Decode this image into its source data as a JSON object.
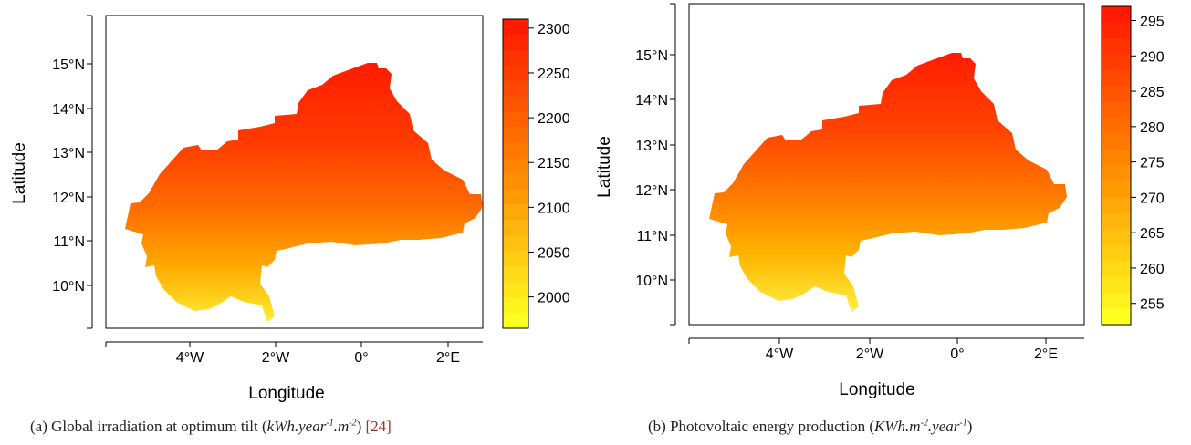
{
  "panels": [
    {
      "id": "a",
      "caption": {
        "prefix": "(a) Global irradiation at optimum tilt (",
        "unit_a": "kWh.year",
        "exp_a": "-1",
        "unit_b": ".m",
        "exp_b": "-2",
        "suffix": ")",
        "citation": "[24]"
      },
      "xlabel": "Longitude",
      "ylabel": "Latitude",
      "x_ticks": [
        "4°W",
        "2°W",
        "0°",
        "2°E"
      ],
      "y_ticks": [
        "15°N",
        "14°N",
        "13°N",
        "12°N",
        "11°N",
        "10°N"
      ],
      "colorbar": {
        "ticks": [
          "2300",
          "2250",
          "2200",
          "2150",
          "2100",
          "2050",
          "2000"
        ],
        "min": 1965,
        "max": 2310
      }
    },
    {
      "id": "b",
      "caption": {
        "prefix": "(b) Photovoltaic energy production (",
        "unit_a": "KWh.m",
        "exp_a": "-2",
        "unit_b": ".year",
        "exp_b": "-1",
        "suffix": ")",
        "citation": ""
      },
      "xlabel": "Longitude",
      "ylabel": "Latitude",
      "x_ticks": [
        "4°W",
        "2°W",
        "0°",
        "2°E"
      ],
      "y_ticks": [
        "15°N",
        "14°N",
        "13°N",
        "12°N",
        "11°N",
        "10°N"
      ],
      "colorbar": {
        "ticks": [
          "295",
          "290",
          "285",
          "280",
          "275",
          "270",
          "265",
          "260",
          "255"
        ],
        "min": 252,
        "max": 297
      }
    }
  ],
  "colors": {
    "high": "#ff1a00",
    "mid": "#ff8a00",
    "low": "#ffff20"
  }
}
